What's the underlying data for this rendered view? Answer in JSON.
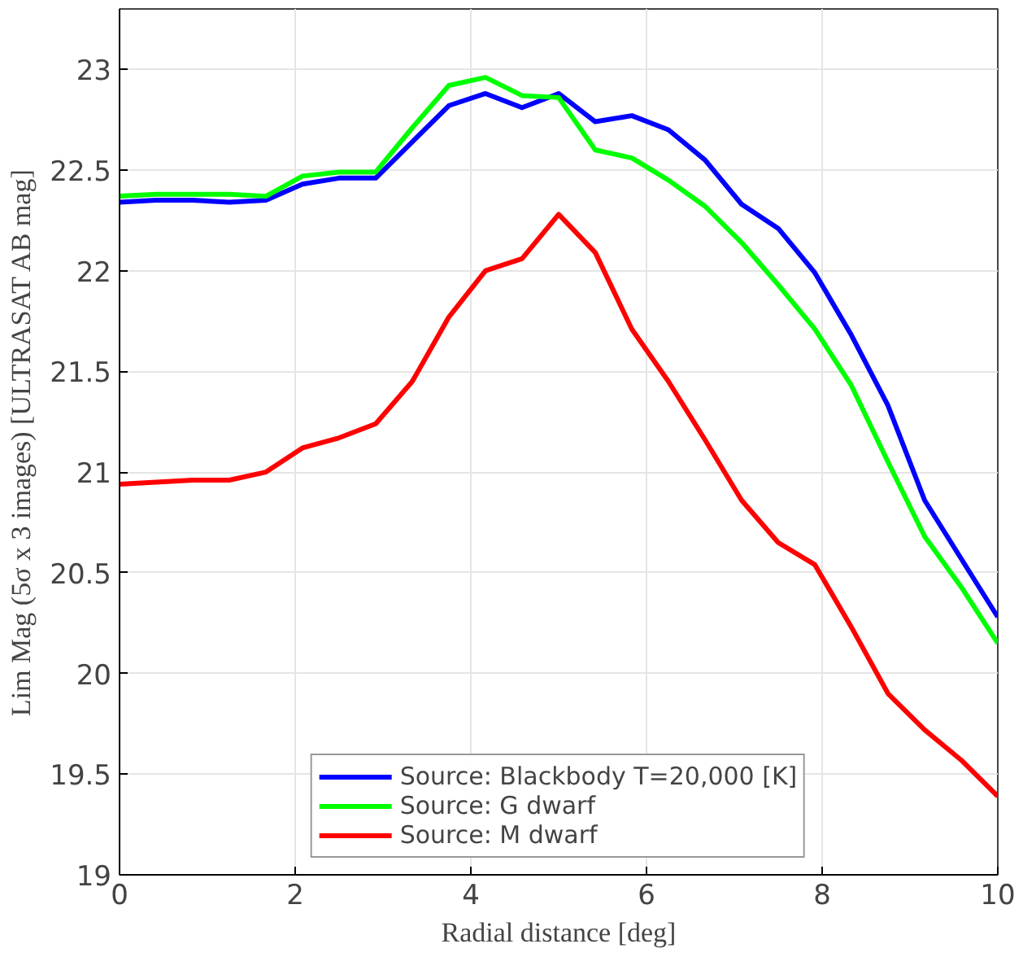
{
  "chart_data": {
    "type": "line",
    "xlabel": "Radial distance [deg]",
    "ylabel": "Lim Mag (5σ x 3 images) [ULTRASAT AB mag]",
    "x": [
      0,
      0.417,
      0.833,
      1.25,
      1.667,
      2.083,
      2.5,
      2.917,
      3.333,
      3.75,
      4.167,
      4.583,
      5,
      5.417,
      5.833,
      6.25,
      6.667,
      7.083,
      7.5,
      7.917,
      8.333,
      8.75,
      9.167,
      9.583,
      10
    ],
    "series": [
      {
        "name": "Source: Blackbody T=20,000 [K]",
        "color": "#0000ff",
        "values": [
          22.34,
          22.35,
          22.35,
          22.34,
          22.35,
          22.43,
          22.46,
          22.46,
          22.64,
          22.82,
          22.88,
          22.81,
          22.88,
          22.74,
          22.77,
          22.7,
          22.55,
          22.33,
          22.21,
          21.99,
          21.68,
          21.33,
          20.86,
          20.57,
          20.28
        ]
      },
      {
        "name": "Source: G dwarf",
        "color": "#00ff00",
        "values": [
          22.37,
          22.38,
          22.38,
          22.38,
          22.37,
          22.47,
          22.49,
          22.49,
          22.71,
          22.92,
          22.96,
          22.87,
          22.86,
          22.6,
          22.56,
          22.45,
          22.32,
          22.14,
          21.93,
          21.71,
          21.43,
          21.05,
          20.68,
          20.43,
          20.15
        ]
      },
      {
        "name": "Source: M dwarf",
        "color": "#ff0000",
        "values": [
          20.94,
          20.95,
          20.96,
          20.96,
          21.0,
          21.12,
          21.17,
          21.24,
          21.45,
          21.77,
          22.0,
          22.06,
          22.28,
          22.09,
          21.71,
          21.45,
          21.16,
          20.86,
          20.65,
          20.54,
          20.23,
          19.9,
          19.72,
          19.57,
          19.39
        ]
      }
    ],
    "xlim": [
      0,
      10
    ],
    "ylim": [
      19,
      23.3
    ],
    "xticks": [
      0,
      2,
      4,
      6,
      8,
      10
    ],
    "yticks": [
      19,
      19.5,
      20,
      20.5,
      21,
      21.5,
      22,
      22.5,
      23
    ],
    "grid": true,
    "legend": "bottom",
    "line_style": "solid",
    "marker": "none"
  }
}
